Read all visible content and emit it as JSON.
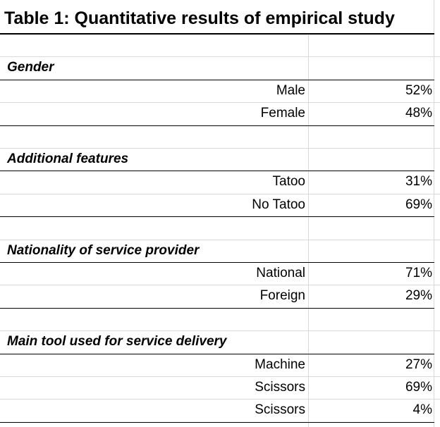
{
  "table": {
    "title": "Table 1: Quantitative results of empirical study",
    "sections": [
      {
        "heading": "Gender",
        "rows": [
          [
            "Male",
            "52%"
          ],
          [
            "Female",
            "48%"
          ]
        ]
      },
      {
        "heading": "Additional features",
        "rows": [
          [
            "Tatoo",
            "31%"
          ],
          [
            "No Tatoo",
            "69%"
          ]
        ]
      },
      {
        "heading": "Nationality of service provider",
        "rows": [
          [
            "National",
            "71%"
          ],
          [
            "Foreign",
            "29%"
          ]
        ]
      },
      {
        "heading": "Main tool used for service delivery",
        "rows": [
          [
            "Machine",
            "27%"
          ],
          [
            "Scissors",
            "69%"
          ],
          [
            "Scissors",
            "4%"
          ]
        ]
      }
    ]
  }
}
